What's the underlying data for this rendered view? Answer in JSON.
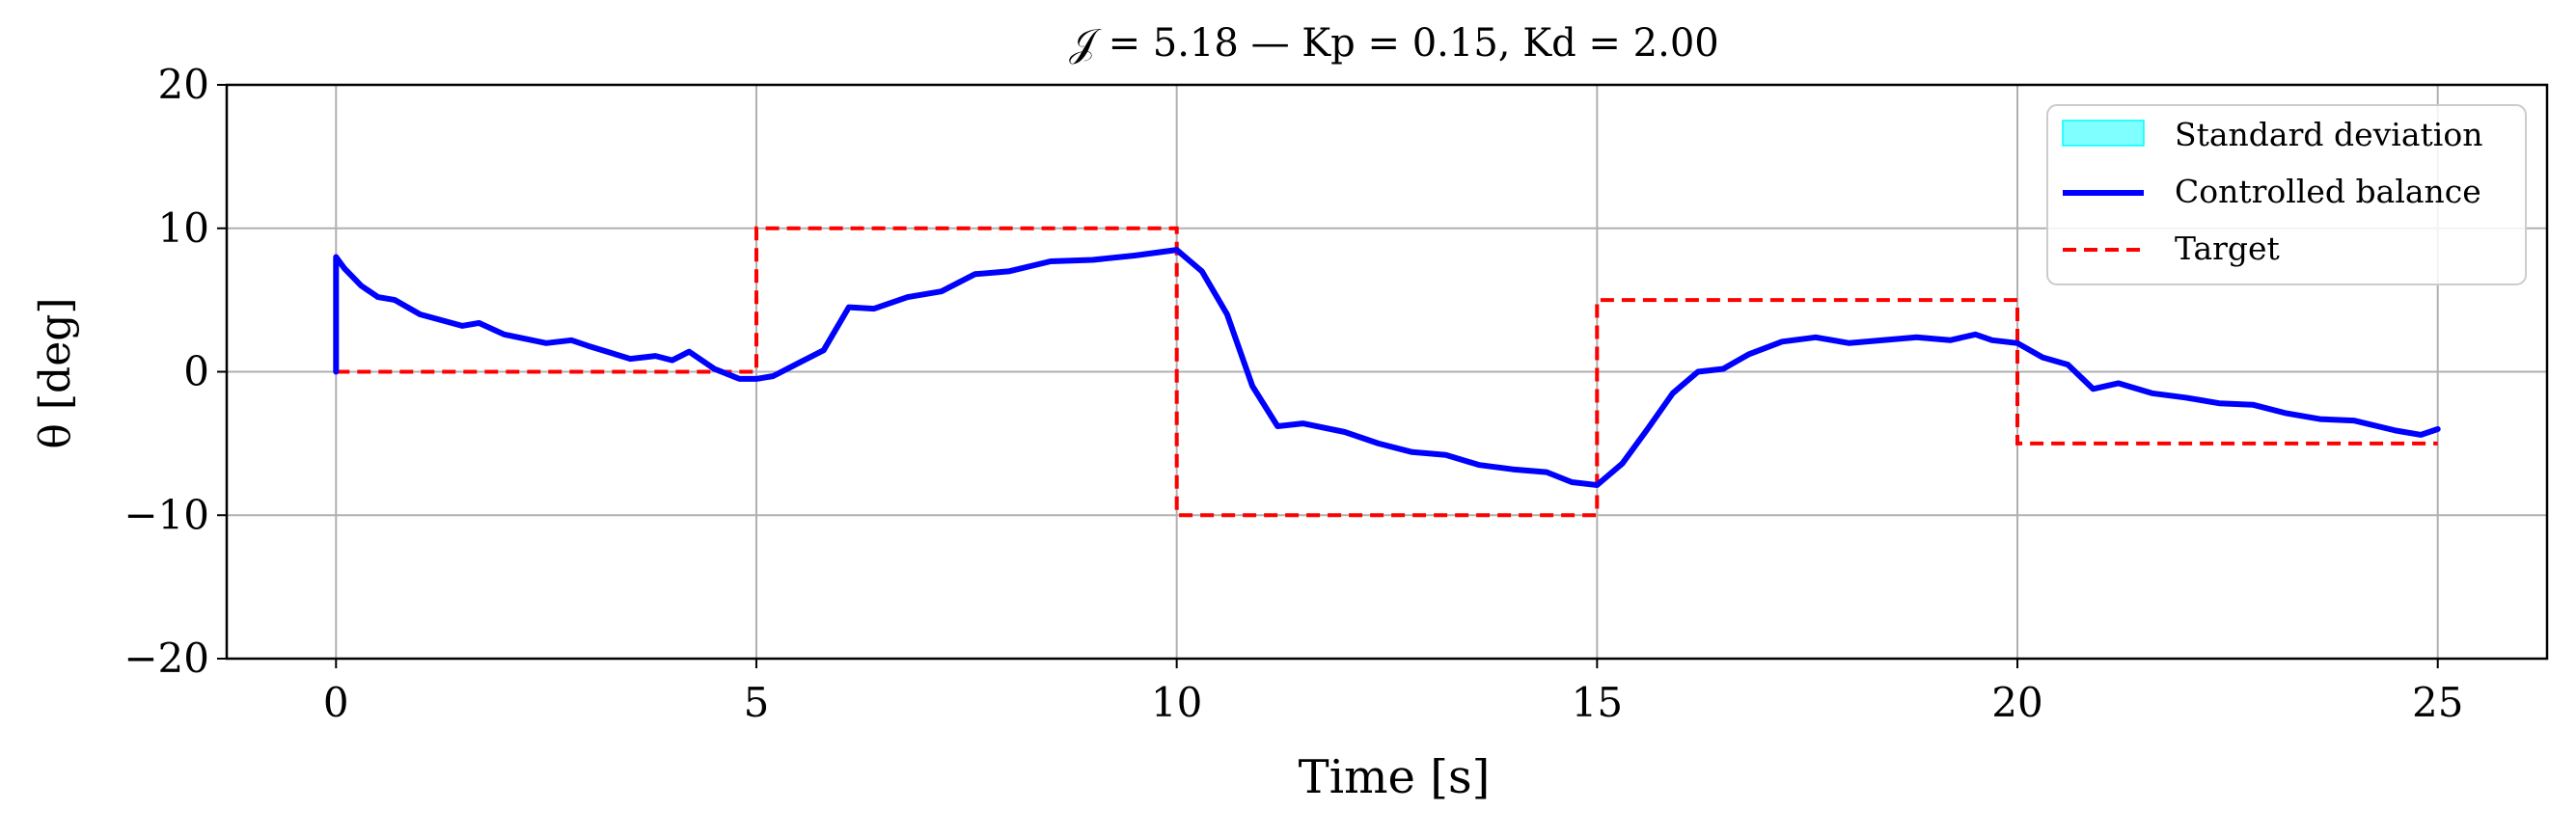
{
  "chart_data": {
    "type": "line",
    "title": "𝒥 = 5.18 — Kp = 0.15, Kd = 2.00",
    "xlabel": "Time [s]",
    "ylabel": "θ [deg]",
    "xlim": [
      -1.3,
      26.3
    ],
    "ylim": [
      -20,
      20
    ],
    "x_ticks": [
      0,
      5,
      10,
      15,
      20,
      25
    ],
    "y_ticks": [
      -20,
      -10,
      0,
      10,
      20
    ],
    "x_tick_labels": [
      "0",
      "5",
      "10",
      "15",
      "20",
      "25"
    ],
    "y_tick_labels": [
      "−20",
      "−10",
      "0",
      "10",
      "20"
    ],
    "grid": true,
    "legend_position": "top-right",
    "series": [
      {
        "name": "Standard deviation",
        "kind": "band",
        "color": "#00ffff",
        "x": [],
        "lower": [],
        "upper": []
      },
      {
        "name": "Controlled balance",
        "kind": "line",
        "style": "solid",
        "color": "#0000ff",
        "x": [
          0,
          0,
          0.1,
          0.3,
          0.5,
          0.7,
          1.0,
          1.5,
          1.7,
          2.0,
          2.5,
          2.8,
          3.0,
          3.5,
          3.8,
          4.0,
          4.2,
          4.5,
          4.8,
          5.0,
          5.2,
          5.5,
          5.8,
          6.1,
          6.4,
          6.8,
          7.2,
          7.6,
          8.0,
          8.5,
          9.0,
          9.5,
          10.0,
          10.3,
          10.6,
          10.9,
          11.2,
          11.5,
          12.0,
          12.4,
          12.8,
          13.2,
          13.6,
          14.0,
          14.4,
          14.7,
          15.0,
          15.3,
          15.6,
          15.9,
          16.2,
          16.5,
          16.8,
          17.2,
          17.6,
          18.0,
          18.4,
          18.8,
          19.2,
          19.5,
          19.7,
          20.0,
          20.3,
          20.6,
          20.9,
          21.2,
          21.6,
          22.0,
          22.4,
          22.8,
          23.2,
          23.6,
          24.0,
          24.5,
          24.8,
          25.0
        ],
        "y": [
          0,
          8.0,
          7.2,
          6.0,
          5.2,
          5.0,
          4.0,
          3.2,
          3.4,
          2.6,
          2.0,
          2.2,
          1.8,
          0.9,
          1.1,
          0.8,
          1.4,
          0.2,
          -0.5,
          -0.5,
          -0.3,
          0.6,
          1.5,
          4.5,
          4.4,
          5.2,
          5.6,
          6.8,
          7.0,
          7.7,
          7.8,
          8.1,
          8.5,
          7.0,
          4.0,
          -1.0,
          -3.8,
          -3.6,
          -4.2,
          -5.0,
          -5.6,
          -5.8,
          -6.5,
          -6.8,
          -7.0,
          -7.7,
          -7.9,
          -6.4,
          -4.0,
          -1.5,
          0.0,
          0.2,
          1.2,
          2.1,
          2.4,
          2.0,
          2.2,
          2.4,
          2.2,
          2.6,
          2.2,
          2.0,
          1.0,
          0.5,
          -1.2,
          -0.8,
          -1.5,
          -1.8,
          -2.2,
          -2.3,
          -2.9,
          -3.3,
          -3.4,
          -4.1,
          -4.4,
          -4.0
        ]
      },
      {
        "name": "Target",
        "kind": "line",
        "style": "dashed",
        "color": "#ff0000",
        "x": [
          0,
          5,
          5,
          10,
          10,
          15,
          15,
          20,
          20,
          25
        ],
        "y": [
          0,
          0,
          10,
          10,
          -10,
          -10,
          5,
          5,
          -5,
          -5
        ]
      }
    ]
  }
}
